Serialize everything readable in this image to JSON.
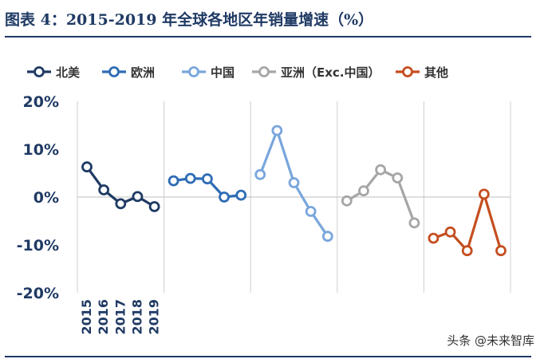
{
  "figure": {
    "title": "图表 4：2015-2019 年全球各地区年销量增速（%）",
    "watermark": "头条 @未来智库"
  },
  "chart_data": {
    "type": "line",
    "title": "图表 4：2015-2019 年全球各地区年销量增速（%）",
    "categories": [
      "2015",
      "2016",
      "2017",
      "2018",
      "2019"
    ],
    "ylim": [
      -20,
      20
    ],
    "yticks": [
      20,
      10,
      0,
      -10,
      -20
    ],
    "ytick_labels": [
      "20%",
      "10%",
      "0%",
      "-10%",
      "-20%"
    ],
    "legend_position": "top",
    "grid": "vertical panel dividers and zero line",
    "series": [
      {
        "name": "北美",
        "color": "#1f3a64",
        "values": [
          6.3,
          1.5,
          -1.4,
          0.1,
          -2.0
        ]
      },
      {
        "name": "欧洲",
        "color": "#2e6cb5",
        "values": [
          3.4,
          3.9,
          3.8,
          0.0,
          0.4
        ]
      },
      {
        "name": "中国",
        "color": "#79a6dc",
        "values": [
          4.7,
          13.9,
          3.0,
          -3.0,
          -8.2
        ]
      },
      {
        "name": "亚洲（Exc.中国）",
        "color": "#a6a6a6",
        "values": [
          -0.8,
          1.3,
          5.7,
          4.0,
          -5.4
        ]
      },
      {
        "name": "其他",
        "color": "#c54e1f",
        "values": [
          -8.6,
          -7.3,
          -11.2,
          0.6,
          -11.2
        ]
      }
    ]
  }
}
